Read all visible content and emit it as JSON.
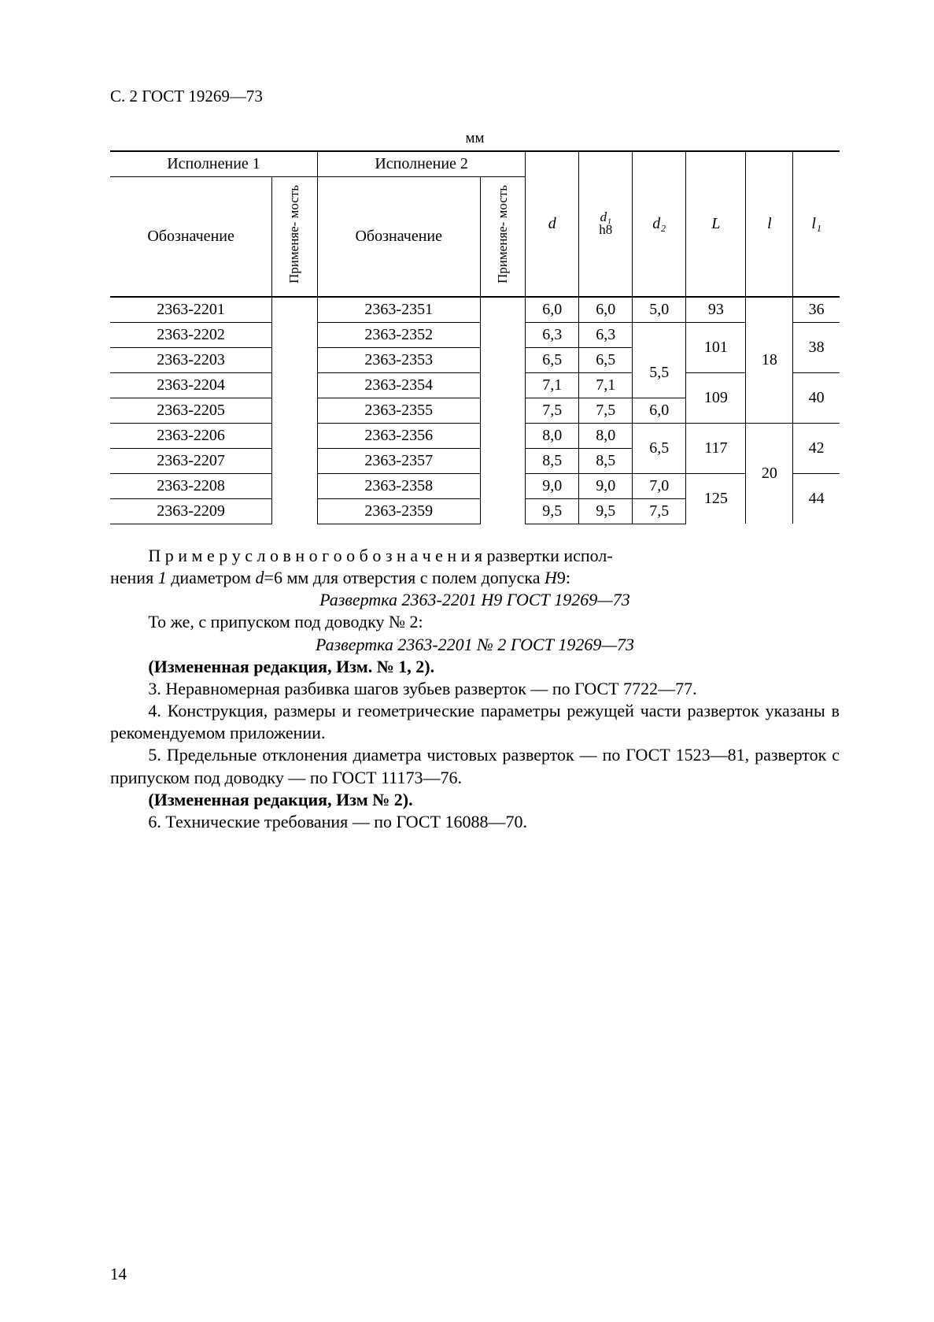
{
  "header": {
    "text": "С. 2  ГОСТ 19269—73"
  },
  "table": {
    "caption": "мм",
    "head": {
      "group1": "Исполнение 1",
      "group2": "Исполнение 2",
      "designation": "Обозначение",
      "applicability": "Применяе-\nмость",
      "d": "d",
      "d1_top": "d₁",
      "d1_bot": "h8",
      "d2": "d₂",
      "L": "L",
      "l": "l",
      "l1": "l₁"
    },
    "rows": [
      {
        "c1": "2363-2201",
        "c2": "2363-2351",
        "d": "6,0",
        "d1": "6,0"
      },
      {
        "c1": "2363-2202",
        "c2": "2363-2352",
        "d": "6,3",
        "d1": "6,3"
      },
      {
        "c1": "2363-2203",
        "c2": "2363-2353",
        "d": "6,5",
        "d1": "6,5"
      },
      {
        "c1": "2363-2204",
        "c2": "2363-2354",
        "d": "7,1",
        "d1": "7,1"
      },
      {
        "c1": "2363-2205",
        "c2": "2363-2355",
        "d": "7,5",
        "d1": "7,5"
      },
      {
        "c1": "2363-2206",
        "c2": "2363-2356",
        "d": "8,0",
        "d1": "8,0"
      },
      {
        "c1": "2363-2207",
        "c2": "2363-2357",
        "d": "8,5",
        "d1": "8,5"
      },
      {
        "c1": "2363-2208",
        "c2": "2363-2358",
        "d": "9,0",
        "d1": "9,0"
      },
      {
        "c1": "2363-2209",
        "c2": "2363-2359",
        "d": "9,5",
        "d1": "9,5"
      }
    ],
    "d2_spans": [
      {
        "value": "5,0",
        "rows": 1
      },
      {
        "value": "5,5",
        "rows": 2
      },
      {
        "value": "",
        "rows": 1,
        "hidden": true
      },
      {
        "value": "6,0",
        "rows": 1
      },
      {
        "value": "6,5",
        "rows": 2
      },
      {
        "value": "7,0",
        "rows": 1
      },
      {
        "value": "7,5",
        "rows": 1
      }
    ],
    "d2_plan": [
      "5,0",
      null,
      "5,5",
      null,
      "6,0",
      "6,5",
      null,
      "7,0",
      "7,5"
    ],
    "L_plan": [
      {
        "v": "93",
        "span": 1
      },
      {
        "v": "101",
        "span": 2
      },
      null,
      {
        "v": "109",
        "span": 2
      },
      null,
      {
        "v": "117",
        "span": 2
      },
      null,
      {
        "v": "125",
        "span": 2
      },
      null
    ],
    "l_plan": [
      {
        "v": "18",
        "span": 5
      },
      null,
      null,
      null,
      null,
      {
        "v": "20",
        "span": 4
      },
      null,
      null,
      null
    ],
    "l1_plan": [
      {
        "v": "36",
        "span": 1
      },
      {
        "v": "38",
        "span": 2
      },
      null,
      {
        "v": "40",
        "span": 2
      },
      null,
      {
        "v": "42",
        "span": 2
      },
      null,
      {
        "v": "44",
        "span": 2
      },
      null
    ],
    "d2_col": [
      {
        "v": "5,0",
        "span": 1
      },
      {
        "v": "",
        "span": 1,
        "blank": true
      },
      {
        "v": "5,5",
        "span": 2
      },
      null,
      {
        "v": "6,0",
        "span": 1
      },
      {
        "v": "6,5",
        "span": 2
      },
      null,
      {
        "v": "7,0",
        "span": 1
      },
      {
        "v": "7,5",
        "span": 1
      }
    ]
  },
  "text": {
    "p1a": "П р и м е р   у с л о в н о г о   о б о з н а ч е н и я  развертки испол-",
    "p1b": "нения ",
    "p1c": " диаметром ",
    "p1d": "=6 мм для отверстия с полем допуска ",
    "p1e": "9:",
    "ex1": "Развертка 2363-2201 Н9 ГОСТ 19269—73",
    "p2": "То же, с припуском под доводку № 2:",
    "ex2": "Развертка 2363-2201 № 2 ГОСТ 19269—73",
    "p3": "(Измененная редакция, Изм. № 1, 2).",
    "p4": "3. Неравномерная разбивка шагов зубьев разверток — по ГОСТ 7722—77.",
    "p5": "4. Конструкция, размеры и геометрические параметры режущей части разверток указаны в рекомендуемом приложении.",
    "p6": "5. Предельные отклонения диаметра чистовых разверток — по ГОСТ 1523—81, разверток с припуском под доводку — по ГОСТ 11173—76.",
    "p7": "(Измененная редакция, Изм № 2).",
    "p8": "6. Технические требования — по ГОСТ 16088—70.",
    "one": "1",
    "d": "d",
    "H": "Н"
  },
  "page_number": "14"
}
